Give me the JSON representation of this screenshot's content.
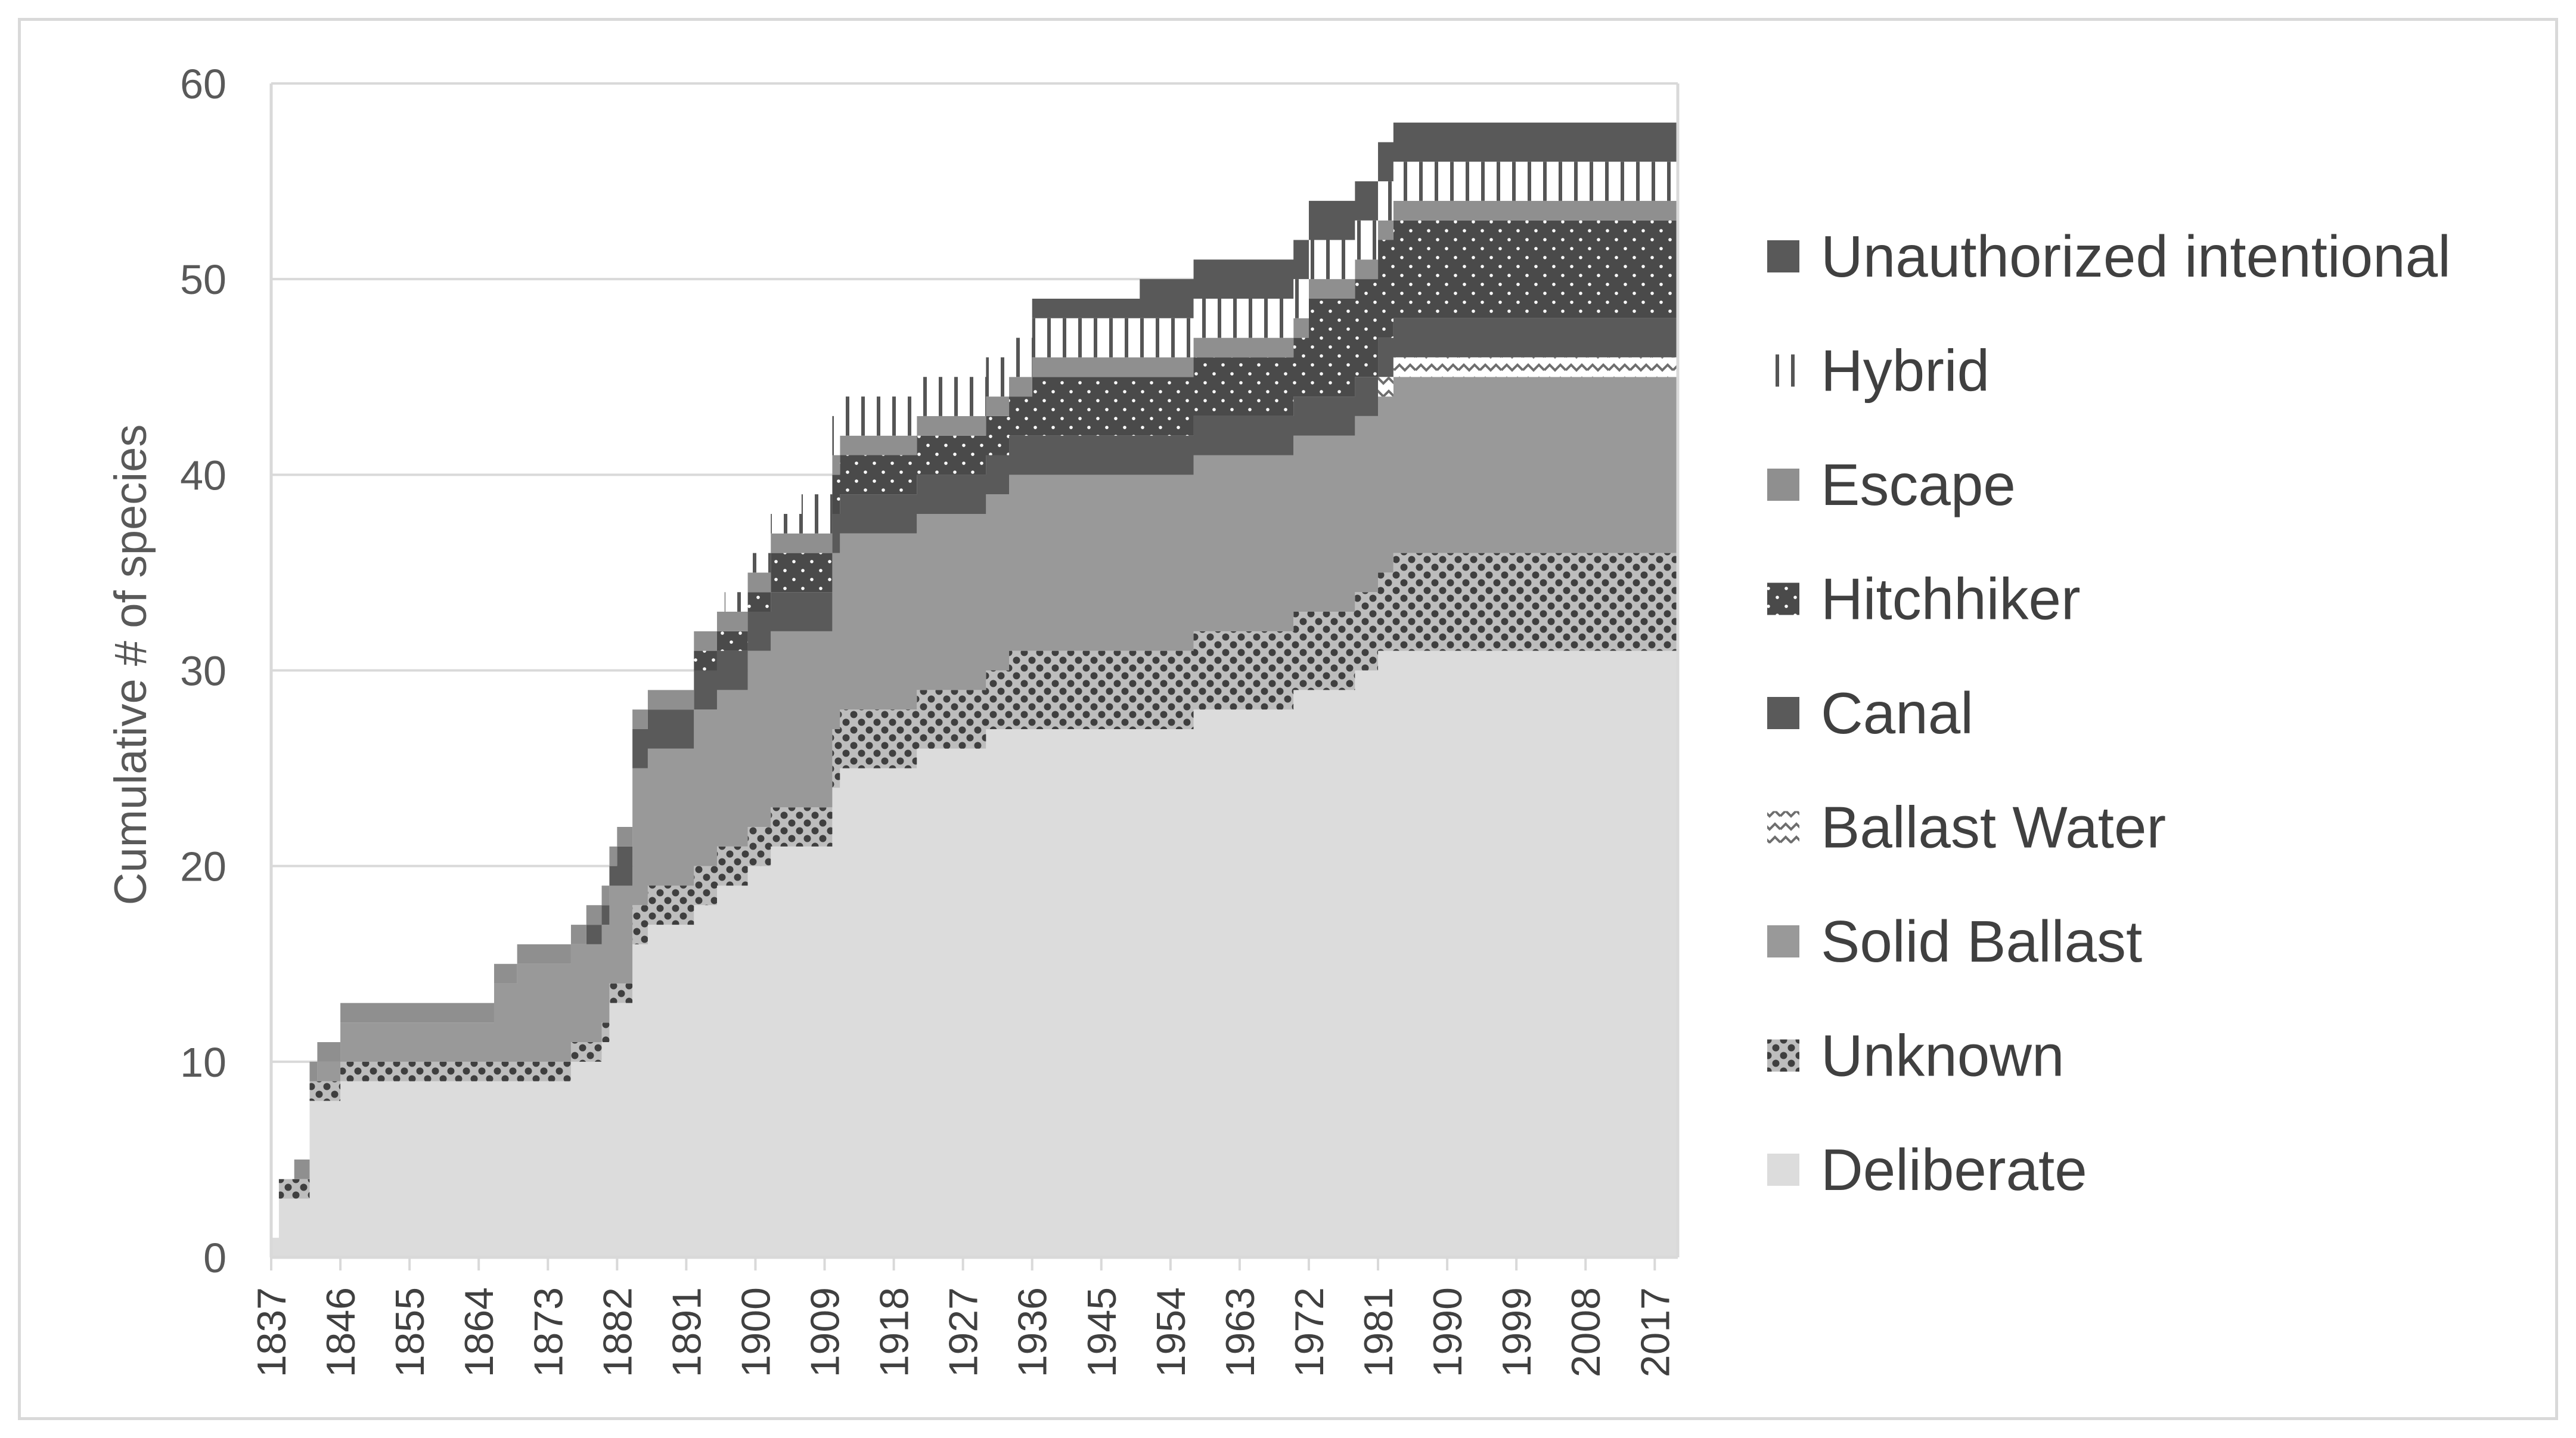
{
  "chart_data": {
    "type": "area",
    "stacked": true,
    "title": "",
    "xlabel": "",
    "ylabel": "Cumulative # of species",
    "ylim": [
      0,
      60
    ],
    "yticks": [
      "0",
      "10",
      "20",
      "30",
      "40",
      "50",
      "60"
    ],
    "xlim": [
      1837,
      2020
    ],
    "xticks": [
      "1837",
      "1846",
      "1855",
      "1864",
      "1873",
      "1882",
      "1891",
      "1900",
      "1909",
      "1918",
      "1927",
      "1936",
      "1945",
      "1954",
      "1963",
      "1972",
      "1981",
      "1990",
      "1999",
      "2008",
      "2017"
    ],
    "x": [
      1837,
      1838,
      1840,
      1841,
      1842,
      1843,
      1844,
      1846,
      1848,
      1863,
      1866,
      1869,
      1871,
      1874,
      1876,
      1878,
      1879,
      1880,
      1881,
      1882,
      1883,
      1884,
      1885,
      1886,
      1887,
      1888,
      1891,
      1892,
      1893,
      1894,
      1895,
      1896,
      1897,
      1898,
      1899,
      1900,
      1901,
      1902,
      1903,
      1904,
      1905,
      1906,
      1907,
      1908,
      1909,
      1910,
      1911,
      1912,
      1913,
      1916,
      1917,
      1921,
      1925,
      1929,
      1930,
      1931,
      1932,
      1933,
      1934,
      1936,
      1940,
      1944,
      1946,
      1950,
      1953,
      1954,
      1955,
      1956,
      1957,
      1961,
      1964,
      1965,
      1966,
      1967,
      1969,
      1970,
      1971,
      1972,
      1973,
      1977,
      1978,
      1980,
      1981,
      1982,
      1983,
      2020
    ],
    "series": [
      {
        "name": "Deliberate",
        "color": "#dcdcdc",
        "values": [
          1,
          3,
          3,
          3,
          8,
          8,
          8,
          9,
          9,
          9,
          9,
          9,
          9,
          9,
          10,
          10,
          10,
          11,
          13,
          13,
          13,
          16,
          16,
          17,
          17,
          17,
          17,
          18,
          18,
          18,
          19,
          19,
          19,
          19,
          20,
          20,
          20,
          21,
          21,
          21,
          21,
          21,
          21,
          21,
          21,
          24,
          25,
          25,
          25,
          25,
          25,
          26,
          26,
          26,
          27,
          27,
          27,
          27,
          27,
          27,
          27,
          27,
          27,
          27,
          27,
          27,
          27,
          27,
          28,
          28,
          28,
          28,
          28,
          28,
          28,
          29,
          29,
          29,
          29,
          29,
          30,
          30,
          31,
          31,
          31,
          31
        ]
      },
      {
        "name": "Unknown",
        "color": "#707070",
        "values": [
          0,
          1,
          1,
          1,
          1,
          1,
          1,
          1,
          1,
          1,
          1,
          1,
          1,
          1,
          1,
          1,
          1,
          1,
          1,
          1,
          1,
          2,
          2,
          2,
          2,
          2,
          2,
          2,
          2,
          2,
          2,
          2,
          2,
          2,
          2,
          2,
          2,
          2,
          2,
          2,
          2,
          2,
          2,
          2,
          2,
          3,
          3,
          3,
          3,
          3,
          3,
          3,
          3,
          3,
          3,
          3,
          3,
          4,
          4,
          4,
          4,
          4,
          4,
          4,
          4,
          4,
          4,
          4,
          4,
          4,
          4,
          4,
          4,
          4,
          4,
          4,
          4,
          4,
          4,
          4,
          4,
          4,
          4,
          4,
          5,
          5
        ]
      },
      {
        "name": "Solid Ballast",
        "color": "#999999",
        "values": [
          0,
          0,
          0,
          0,
          0,
          1,
          1,
          2,
          2,
          2,
          4,
          5,
          5,
          5,
          5,
          5,
          5,
          5,
          5,
          5,
          5,
          7,
          7,
          7,
          7,
          7,
          7,
          8,
          8,
          8,
          8,
          8,
          8,
          8,
          9,
          9,
          9,
          9,
          9,
          9,
          9,
          9,
          9,
          9,
          9,
          9,
          9,
          9,
          9,
          9,
          9,
          9,
          9,
          9,
          9,
          9,
          9,
          9,
          9,
          9,
          9,
          9,
          9,
          9,
          9,
          9,
          9,
          9,
          9,
          9,
          9,
          9,
          9,
          9,
          9,
          9,
          9,
          9,
          9,
          9,
          9,
          9,
          9,
          9,
          9,
          9
        ]
      },
      {
        "name": "Ballast Water",
        "color": "#e8e8e8",
        "values": [
          0,
          0,
          0,
          0,
          0,
          0,
          0,
          0,
          0,
          0,
          0,
          0,
          0,
          0,
          0,
          0,
          0,
          0,
          0,
          0,
          0,
          0,
          0,
          0,
          0,
          0,
          0,
          0,
          0,
          0,
          0,
          0,
          0,
          0,
          0,
          0,
          0,
          0,
          0,
          0,
          0,
          0,
          0,
          0,
          0,
          0,
          0,
          0,
          0,
          0,
          0,
          0,
          0,
          0,
          0,
          0,
          0,
          0,
          0,
          0,
          0,
          0,
          0,
          0,
          0,
          0,
          0,
          0,
          0,
          0,
          0,
          0,
          0,
          0,
          0,
          0,
          0,
          0,
          0,
          0,
          0,
          0,
          1,
          1,
          1,
          1
        ]
      },
      {
        "name": "Canal",
        "color": "#5a5a5a",
        "values": [
          0,
          0,
          0,
          0,
          0,
          0,
          0,
          0,
          0,
          0,
          0,
          0,
          0,
          0,
          0,
          1,
          1,
          1,
          1,
          2,
          2,
          2,
          2,
          2,
          2,
          2,
          2,
          2,
          2,
          2,
          2,
          2,
          2,
          2,
          2,
          2,
          2,
          2,
          2,
          2,
          2,
          2,
          2,
          2,
          2,
          2,
          2,
          2,
          2,
          2,
          2,
          2,
          2,
          2,
          2,
          2,
          2,
          2,
          2,
          2,
          2,
          2,
          2,
          2,
          2,
          2,
          2,
          2,
          2,
          2,
          2,
          2,
          2,
          2,
          2,
          2,
          2,
          2,
          2,
          2,
          2,
          2,
          2,
          2,
          2,
          2
        ]
      },
      {
        "name": "Hitchhiker",
        "color": "#4f4f4f",
        "values": [
          0,
          0,
          0,
          0,
          0,
          0,
          0,
          0,
          0,
          0,
          0,
          0,
          0,
          0,
          0,
          0,
          0,
          0,
          0,
          0,
          0,
          0,
          0,
          0,
          0,
          0,
          0,
          1,
          1,
          1,
          1,
          1,
          1,
          1,
          1,
          1,
          1,
          2,
          2,
          2,
          2,
          2,
          2,
          2,
          2,
          2,
          2,
          2,
          2,
          2,
          2,
          2,
          2,
          2,
          2,
          2,
          2,
          2,
          2,
          3,
          3,
          3,
          3,
          3,
          3,
          3,
          3,
          3,
          3,
          3,
          3,
          3,
          3,
          3,
          3,
          3,
          3,
          5,
          5,
          5,
          5,
          5,
          5,
          5,
          5,
          5
        ]
      },
      {
        "name": "Escape",
        "color": "#8f8f8f",
        "values": [
          0,
          0,
          1,
          1,
          1,
          1,
          1,
          1,
          1,
          1,
          1,
          1,
          1,
          1,
          1,
          1,
          1,
          1,
          1,
          1,
          1,
          1,
          1,
          1,
          1,
          1,
          1,
          1,
          1,
          1,
          1,
          1,
          1,
          1,
          1,
          1,
          1,
          1,
          1,
          1,
          1,
          1,
          1,
          1,
          1,
          1,
          1,
          1,
          1,
          1,
          1,
          1,
          1,
          1,
          1,
          1,
          1,
          1,
          1,
          1,
          1,
          1,
          1,
          1,
          1,
          1,
          1,
          1,
          1,
          1,
          1,
          1,
          1,
          1,
          1,
          1,
          1,
          1,
          1,
          1,
          1,
          1,
          1,
          1,
          1,
          1
        ]
      },
      {
        "name": "Hybrid",
        "color": "#f4f4f4",
        "values": [
          0,
          0,
          0,
          0,
          0,
          0,
          0,
          0,
          0,
          0,
          0,
          0,
          0,
          0,
          0,
          0,
          0,
          0,
          0,
          0,
          0,
          0,
          0,
          0,
          0,
          0,
          0,
          0,
          0,
          0,
          0,
          1,
          1,
          1,
          1,
          1,
          1,
          1,
          1,
          1,
          1,
          2,
          2,
          2,
          2,
          2,
          2,
          2,
          2,
          2,
          2,
          2,
          2,
          2,
          2,
          2,
          2,
          2,
          2,
          2,
          2,
          2,
          2,
          2,
          2,
          2,
          2,
          2,
          2,
          2,
          2,
          2,
          2,
          2,
          2,
          2,
          2,
          2,
          2,
          2,
          2,
          2,
          2,
          2,
          2,
          2
        ]
      },
      {
        "name": "Unauthorized intentional",
        "color": "#595959",
        "values": [
          0,
          0,
          0,
          0,
          0,
          0,
          0,
          0,
          0,
          0,
          0,
          0,
          0,
          0,
          0,
          0,
          0,
          0,
          0,
          0,
          0,
          0,
          0,
          0,
          0,
          0,
          0,
          0,
          0,
          0,
          0,
          0,
          0,
          0,
          0,
          0,
          0,
          0,
          0,
          0,
          0,
          0,
          0,
          0,
          0,
          0,
          0,
          0,
          0,
          0,
          0,
          0,
          0,
          0,
          0,
          0,
          0,
          0,
          0,
          1,
          1,
          1,
          1,
          2,
          2,
          2,
          2,
          2,
          2,
          2,
          2,
          2,
          2,
          2,
          2,
          2,
          2,
          2,
          2,
          2,
          2,
          2,
          2,
          2,
          2,
          2
        ]
      }
    ],
    "legend": [
      "Unauthorized intentional",
      "Hybrid",
      "Escape",
      "Hitchhiker",
      "Canal",
      "Ballast Water",
      "Solid Ballast",
      "Unknown",
      "Deliberate"
    ],
    "legend_position": "right",
    "grid": "horizontal"
  }
}
